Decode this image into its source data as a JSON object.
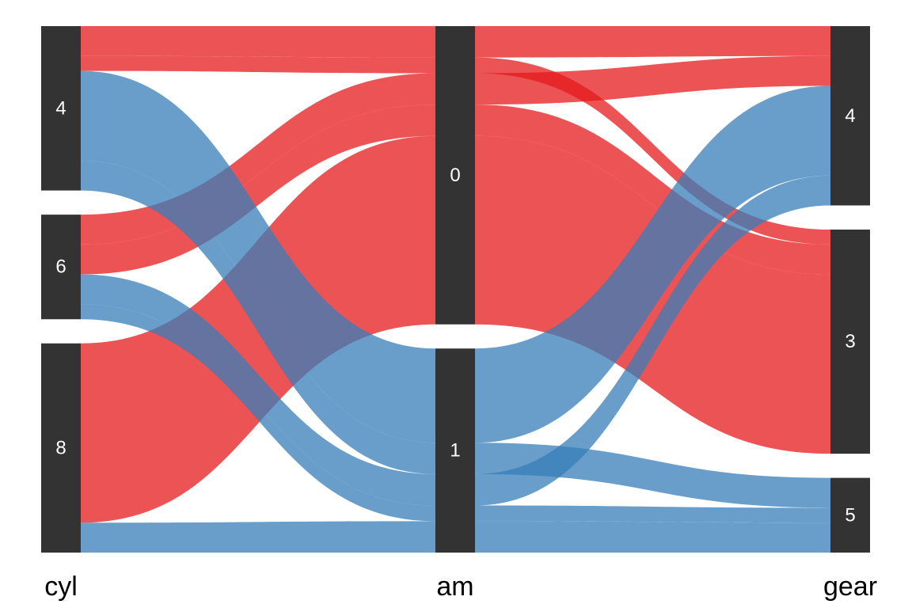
{
  "chart_data": {
    "type": "alluvial",
    "axes": [
      {
        "name": "cyl",
        "categories": [
          "4",
          "6",
          "8"
        ]
      },
      {
        "name": "am",
        "categories": [
          "0",
          "1"
        ]
      },
      {
        "name": "gear",
        "categories": [
          "4",
          "3",
          "5"
        ]
      }
    ],
    "fill_variable": "am",
    "colors": {
      "0": "#E41A1C",
      "1": "#377EB8",
      "node": "#333333"
    },
    "flows": [
      {
        "cyl": "4",
        "am": "0",
        "gear": "4",
        "count": 2
      },
      {
        "cyl": "4",
        "am": "0",
        "gear": "3",
        "count": 1
      },
      {
        "cyl": "6",
        "am": "0",
        "gear": "4",
        "count": 2
      },
      {
        "cyl": "6",
        "am": "0",
        "gear": "3",
        "count": 2
      },
      {
        "cyl": "8",
        "am": "0",
        "gear": "3",
        "count": 12
      },
      {
        "cyl": "4",
        "am": "1",
        "gear": "4",
        "count": 6
      },
      {
        "cyl": "4",
        "am": "1",
        "gear": "5",
        "count": 2
      },
      {
        "cyl": "6",
        "am": "1",
        "gear": "4",
        "count": 2
      },
      {
        "cyl": "6",
        "am": "1",
        "gear": "5",
        "count": 1
      },
      {
        "cyl": "8",
        "am": "1",
        "gear": "5",
        "count": 2
      }
    ]
  }
}
